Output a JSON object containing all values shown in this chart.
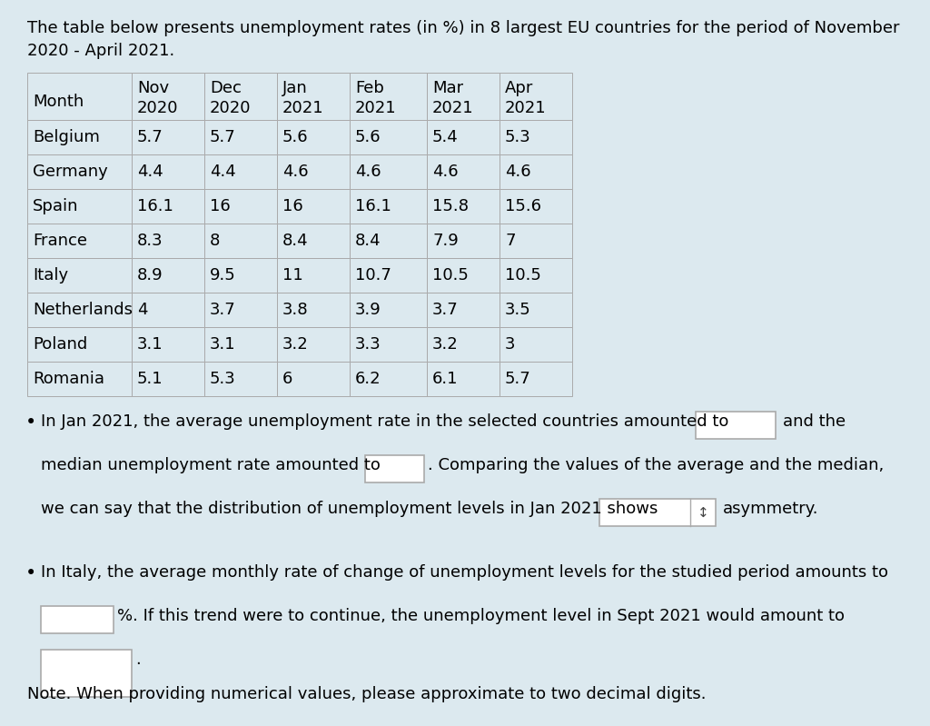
{
  "title_line1": "The table below presents unemployment rates (in %) in 8 largest EU countries for the period of November",
  "title_line2": "2020 - April 2021.",
  "background_color": "#dce9ef",
  "table_header_row1": [
    "",
    "Nov",
    "Dec",
    "Jan",
    "Feb",
    "Mar",
    "Apr"
  ],
  "table_header_row2": [
    "Month",
    "2020",
    "2020",
    "2021",
    "2021",
    "2021",
    "2021"
  ],
  "countries": [
    "Belgium",
    "Germany",
    "Spain",
    "France",
    "Italy",
    "Netherlands",
    "Poland",
    "Romania"
  ],
  "data": [
    [
      "5.7",
      "5.7",
      "5.6",
      "5.6",
      "5.4",
      "5.3"
    ],
    [
      "4.4",
      "4.4",
      "4.6",
      "4.6",
      "4.6",
      "4.6"
    ],
    [
      "16.1",
      "16",
      "16",
      "16.1",
      "15.8",
      "15.6"
    ],
    [
      "8.3",
      "8",
      "8.4",
      "8.4",
      "7.9",
      "7"
    ],
    [
      "8.9",
      "9.5",
      "11",
      "10.7",
      "10.5",
      "10.5"
    ],
    [
      "4",
      "3.7",
      "3.8",
      "3.9",
      "3.7",
      "3.5"
    ],
    [
      "3.1",
      "3.1",
      "3.2",
      "3.3",
      "3.2",
      "3"
    ],
    [
      "5.1",
      "5.3",
      "6",
      "6.2",
      "6.1",
      "5.7"
    ]
  ],
  "font_size": 13,
  "line_color": "#aaaaaa",
  "cell_bg": "#dce9ef",
  "table_border_color": "#888888"
}
